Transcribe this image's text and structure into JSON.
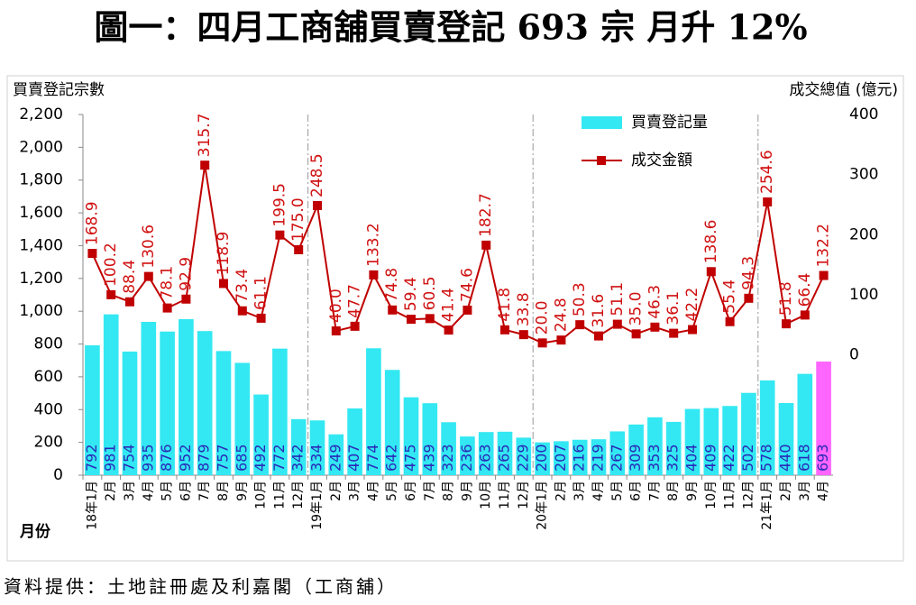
{
  "chart_data": {
    "type": "bar_line",
    "title": "圖一：四月工商舖買賣登記 693 宗 月升 12%",
    "y_label": "買賣登記宗數",
    "y2_label": "成交總值 (億元)",
    "x_label": "月份",
    "source": "資料提供：土地註冊處及利嘉閣（工商舖）",
    "categories": [
      "18年1月",
      "2月",
      "3月",
      "4月",
      "5月",
      "6月",
      "7月",
      "8月",
      "9月",
      "10月",
      "11月",
      "12月",
      "19年1月",
      "2月",
      "3月",
      "4月",
      "5月",
      "6月",
      "7月",
      "8月",
      "9月",
      "10月",
      "11月",
      "12月",
      "20年1月",
      "2月",
      "3月",
      "4月",
      "5月",
      "6月",
      "7月",
      "8月",
      "9月",
      "10月",
      "11月",
      "12月",
      "21年1月",
      "2月",
      "3月",
      "4月"
    ],
    "series": [
      {
        "name": "買賣登記量",
        "type": "bar",
        "color": "#33e8f2",
        "label_color": "#2a2ab8",
        "colors": [
          "#33e8f2",
          "#33e8f2",
          "#33e8f2",
          "#33e8f2",
          "#33e8f2",
          "#33e8f2",
          "#33e8f2",
          "#33e8f2",
          "#33e8f2",
          "#33e8f2",
          "#33e8f2",
          "#33e8f2",
          "#33e8f2",
          "#33e8f2",
          "#33e8f2",
          "#33e8f2",
          "#33e8f2",
          "#33e8f2",
          "#33e8f2",
          "#33e8f2",
          "#33e8f2",
          "#33e8f2",
          "#33e8f2",
          "#33e8f2",
          "#33e8f2",
          "#33e8f2",
          "#33e8f2",
          "#33e8f2",
          "#33e8f2",
          "#33e8f2",
          "#33e8f2",
          "#33e8f2",
          "#33e8f2",
          "#33e8f2",
          "#33e8f2",
          "#33e8f2",
          "#33e8f2",
          "#33e8f2",
          "#33e8f2",
          "#ff66ff"
        ],
        "values": [
          792,
          981,
          754,
          935,
          876,
          952,
          879,
          757,
          685,
          492,
          772,
          342,
          334,
          249,
          407,
          774,
          642,
          475,
          439,
          323,
          236,
          263,
          265,
          229,
          200,
          207,
          216,
          219,
          267,
          309,
          353,
          325,
          404,
          409,
          422,
          502,
          578,
          440,
          618,
          693
        ]
      },
      {
        "name": "成交金額",
        "type": "line",
        "axis": "y2",
        "color": "#c00000",
        "label_color": "#d01010",
        "values": [
          168.9,
          100.2,
          88.4,
          130.6,
          78.1,
          92.9,
          315.7,
          118.9,
          73.4,
          61.1,
          199.5,
          175.0,
          248.5,
          40.0,
          47.7,
          133.2,
          74.8,
          59.4,
          60.5,
          41.4,
          74.6,
          182.7,
          41.8,
          33.8,
          20.0,
          24.8,
          50.3,
          31.6,
          51.1,
          35.0,
          46.3,
          36.1,
          42.2,
          138.6,
          55.4,
          94.3,
          254.6,
          51.8,
          66.4,
          132.2
        ],
        "value_labels": [
          "168.9",
          "100.2",
          "88.4",
          "130.6",
          "78.1",
          "92.9",
          "315.7",
          "118.9",
          "73.4",
          "61.1",
          "199.5",
          "175.0",
          "248.5",
          "40.0",
          "47.7",
          "133.2",
          "74.8",
          "59.4",
          "60.5",
          "41.4",
          "74.6",
          "182.7",
          "41.8",
          "33.8",
          "20.0",
          "24.8",
          "50.3",
          "31.6",
          "51.1",
          "35.0",
          "46.3",
          "36.1",
          "42.2",
          "138.6",
          "55.4",
          "94.3",
          "254.6",
          "51.8",
          "66.4",
          "132.2"
        ]
      }
    ],
    "ylim": [
      0,
      2200
    ],
    "yticks": [
      0,
      200,
      400,
      600,
      800,
      {
        "value": 1000,
        "label": "1,000"
      },
      {
        "value": 1200,
        "label": "1,200"
      },
      {
        "value": 1400,
        "label": "1,400"
      },
      {
        "value": 1600,
        "label": "1,600"
      },
      {
        "value": 1800,
        "label": "1,800"
      },
      {
        "value": 2000,
        "label": "2,000"
      },
      {
        "value": 2200,
        "label": "2,200"
      }
    ],
    "y2lim": [
      -200,
      400
    ],
    "y2ticks": [
      0,
      100,
      200,
      300,
      400
    ]
  }
}
